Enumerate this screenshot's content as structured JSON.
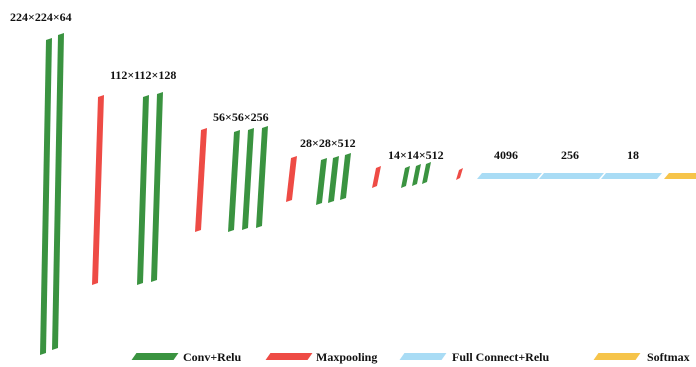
{
  "colors": {
    "conv": "#3a9340",
    "pool": "#ee4b45",
    "fc": "#a9dcf5",
    "softmax": "#f6c44a"
  },
  "stage_labels": [
    "224×224×64",
    "112×112×128",
    "56×56×256",
    "28×28×512",
    "14×14×512",
    "4096",
    "256",
    "18"
  ],
  "legend": [
    {
      "label": "Conv+Relu",
      "color_key": "conv"
    },
    {
      "label": "Maxpooling",
      "color_key": "pool"
    },
    {
      "label": "Full Connect+Relu",
      "color_key": "fc"
    },
    {
      "label": "Softmax",
      "color_key": "softmax"
    }
  ]
}
